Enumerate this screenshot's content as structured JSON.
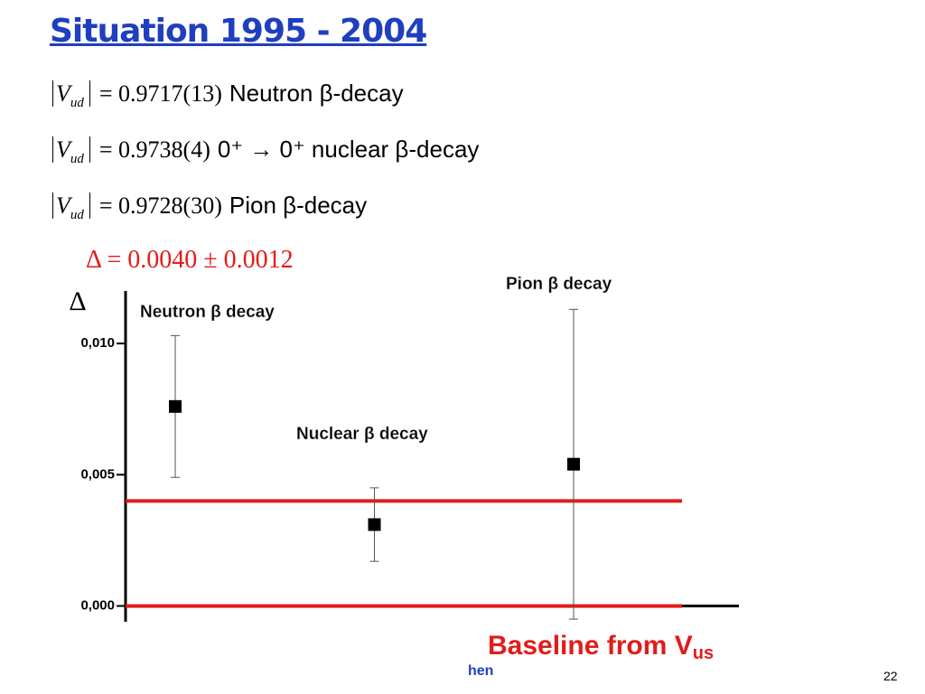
{
  "title": "Situation 1995 - 2004",
  "equations": [
    {
      "symbol": "V",
      "sub": "ud",
      "value": "= 0.9717(13)",
      "desc": "Neutron β-decay"
    },
    {
      "symbol": "V",
      "sub": "ud",
      "value": "= 0.9738(4)",
      "desc": "0⁺ → 0⁺ nuclear β-decay"
    },
    {
      "symbol": "V",
      "sub": "ud",
      "value": "= 0.9728(30)",
      "desc": "Pion β-decay"
    }
  ],
  "delta": "Δ = 0.0040 ± 0.0012",
  "footer_fragment": "hen",
  "slide_number": "22",
  "chart_data": {
    "type": "errorbar",
    "y_label": "Δ",
    "categories": [
      "Neutron β decay",
      "Nuclear β decay",
      "Pion β decay"
    ],
    "series": [
      {
        "name": "Δ",
        "color": "#000000",
        "values": [
          0.0076,
          0.0031,
          0.0054
        ],
        "errors": [
          0.0027,
          0.0014,
          0.0059
        ]
      }
    ],
    "ylim": [
      -0.0006,
      0.012
    ],
    "yticks": [
      {
        "value": 0,
        "label": "0,000"
      },
      {
        "value": 0.005,
        "label": "0,005"
      },
      {
        "value": 0.01,
        "label": "0,010"
      }
    ],
    "hlines": [
      {
        "value": 0.004,
        "color": "#e31b1b"
      },
      {
        "value": 0,
        "color": "#e31b1b"
      }
    ],
    "baseline_label": {
      "text": "Baseline from V",
      "sub": "us",
      "color": "#e31b1b"
    }
  }
}
